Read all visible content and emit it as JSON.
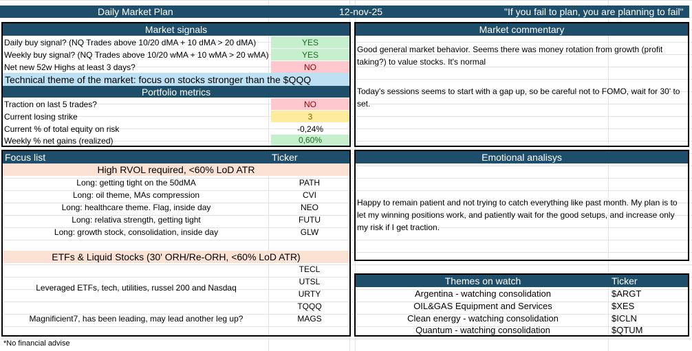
{
  "title_bar": {
    "title": "Daily Market Plan",
    "date": "12-nov-25",
    "quote": "\"If you fail to plan, you are planning to fail\""
  },
  "market_signals": {
    "header": "Market signals",
    "rows": [
      {
        "label": "Daily buy signal? (NQ Trades above 10/20 dMA + 10 dMA > 20 dMA)",
        "value": "YES"
      },
      {
        "label": "Weekly buy signal? (NQ Trades above 10/20 wMA + 10 wMA > 20 wMA)",
        "value": "YES"
      },
      {
        "label": "Net new 52w Highs at least 3 days?",
        "value": "NO"
      }
    ],
    "theme": "Technical theme of the market: focus on stocks stronger than the $QQQ"
  },
  "portfolio_metrics": {
    "header": "Portfolio metrics",
    "rows": [
      {
        "label": "Traction on last 5 trades?",
        "value": "NO"
      },
      {
        "label": "Current losing strike",
        "value": "3"
      },
      {
        "label": "Current % of total equity on risk",
        "value": "-0,24%"
      },
      {
        "label": "Weekly % net gains (realized)",
        "value": "0,60%"
      }
    ]
  },
  "market_commentary": {
    "header": "Market commentary",
    "paragraph1": "Good general market behavior. Seems there was money rotation from growth (profit taking?) to value stocks. It's normal",
    "paragraph2": "Today's sessions seems to start with a gap up, so be careful not to FOMO, wait for 30' to set."
  },
  "focus_list": {
    "header": "Focus list",
    "ticker_header": "Ticker",
    "group1": {
      "title": "High RVOL required, <60% LoD ATR",
      "items": [
        {
          "note": "Long: getting tight on the 50dMA",
          "ticker": "PATH"
        },
        {
          "note": "Long: oil theme, MAs compression",
          "ticker": "CVI"
        },
        {
          "note": "Long: healthcare theme. Flag, inside day",
          "ticker": "NEO"
        },
        {
          "note": "Long: relativa strength, getting tight",
          "ticker": "FUTU"
        },
        {
          "note": "Long: growth stock, consolidation, inside day",
          "ticker": "GLW"
        }
      ]
    },
    "group2": {
      "title": "ETFs & Liquid Stocks (30' ORH/Re-ORH, <60% LoD ATR)",
      "note1": "Leveraged ETFs, tech, utilities, russel 200 and Nasdaq",
      "tickers1": [
        "TECL",
        "UTSL",
        "URTY",
        "TQQQ"
      ],
      "note2": "Magnificient7, has been leading, may lead another leg up?",
      "ticker2": "MAGS"
    }
  },
  "emotional": {
    "header": "Emotional analisys",
    "text": "Happy to remain patient and not trying to catch everything like past month. My plan is to let my winning positions work, and patiently wait for the good setups, and increase only my risk if I get traction."
  },
  "themes": {
    "header": "Themes on watch",
    "ticker_header": "Ticker",
    "rows": [
      {
        "theme": "Argentina - watching consolidation",
        "ticker": "$ARGT"
      },
      {
        "theme": "OIL&GAS Equipment and Services",
        "ticker": "$XES"
      },
      {
        "theme": "Clean energy - watching consolidation",
        "ticker": "$ICLN"
      },
      {
        "theme": "Quantum - watching consolidation",
        "ticker": "$QTUM"
      }
    ]
  },
  "footer": {
    "disclaimer": "*No financial advise"
  },
  "colors": {
    "header_bg": "#1f4e6b",
    "yes_bg": "#c6efce",
    "no_bg": "#ffc7ce",
    "warn_bg": "#ffeb9c",
    "section_bg": "#fbe2d5",
    "theme_bg": "#bde0f3"
  }
}
